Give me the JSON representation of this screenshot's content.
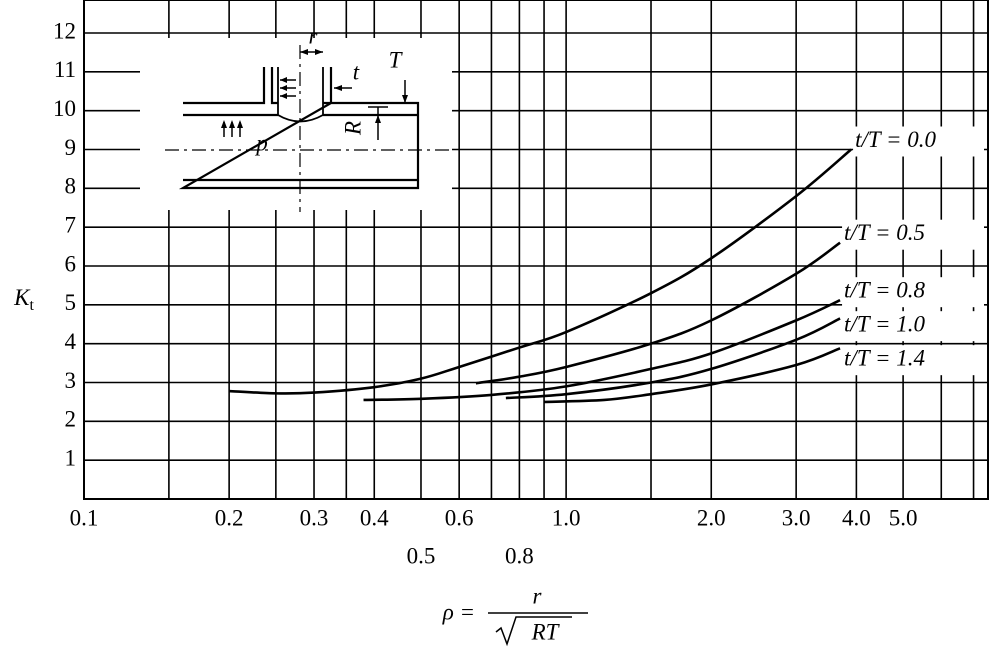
{
  "chart_data": {
    "type": "line",
    "ylabel": {
      "main": "K",
      "sub": "t"
    },
    "xlabel": {
      "lhs": "ρ =",
      "numerator": "r",
      "denominator": "RT"
    },
    "xscale": "log",
    "xlim": [
      0.1,
      7.5
    ],
    "ylim": [
      0,
      12.85
    ],
    "xticks": [
      {
        "value": 0.1,
        "label": "0.1"
      },
      {
        "value": 0.2,
        "label": "0.2"
      },
      {
        "value": 0.3,
        "label": "0.3"
      },
      {
        "value": 0.4,
        "label": "0.4"
      },
      {
        "value": 0.5,
        "label": "0.5"
      },
      {
        "value": 0.6,
        "label": "0.6"
      },
      {
        "value": 0.8,
        "label": "0.8"
      },
      {
        "value": 1,
        "label": "1.0"
      },
      {
        "value": 2,
        "label": "2.0"
      },
      {
        "value": 3,
        "label": "3.0"
      },
      {
        "value": 4,
        "label": "4.0"
      },
      {
        "value": 5,
        "label": "5.0"
      }
    ],
    "xgrid_minor": [
      0.15,
      0.25,
      0.35,
      0.7,
      0.9,
      1.5,
      6,
      7
    ],
    "yticks": [
      1,
      2,
      3,
      4,
      5,
      6,
      7,
      8,
      9,
      10,
      11,
      12
    ],
    "grid": true,
    "color": "#000000",
    "series": [
      {
        "name": "t/T = 0.0",
        "x": [
          0.2,
          0.25,
          0.3,
          0.4,
          0.5,
          0.6,
          0.8,
          1.0,
          1.5,
          2.0,
          3.0,
          3.9
        ],
        "values": [
          2.78,
          2.72,
          2.74,
          2.88,
          3.1,
          3.4,
          3.9,
          4.3,
          5.3,
          6.2,
          7.8,
          9.0
        ]
      },
      {
        "name": "t/T = 0.5",
        "x": [
          0.65,
          0.8,
          1.0,
          1.5,
          2.0,
          3.0,
          3.7
        ],
        "values": [
          2.98,
          3.15,
          3.4,
          4.0,
          4.6,
          5.8,
          6.6
        ]
      },
      {
        "name": "t/T = 0.8",
        "x": [
          0.38,
          0.5,
          0.7,
          1.0,
          1.5,
          2.0,
          3.0,
          3.7
        ],
        "values": [
          2.55,
          2.58,
          2.68,
          2.9,
          3.35,
          3.75,
          4.6,
          5.12
        ]
      },
      {
        "name": "t/T = 1.0",
        "x": [
          0.75,
          1.0,
          1.5,
          2.0,
          3.0,
          3.7
        ],
        "values": [
          2.6,
          2.7,
          3.0,
          3.35,
          4.1,
          4.65
        ]
      },
      {
        "name": "t/T = 1.4",
        "x": [
          0.9,
          1.2,
          1.5,
          2.0,
          3.0,
          3.7
        ],
        "values": [
          2.5,
          2.55,
          2.7,
          2.95,
          3.45,
          3.88
        ]
      }
    ],
    "inset": {
      "labels": [
        "r",
        "t",
        "T",
        "R",
        "p"
      ]
    }
  }
}
